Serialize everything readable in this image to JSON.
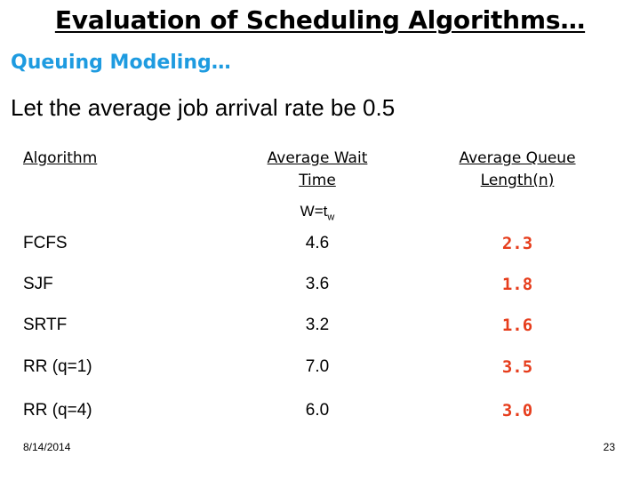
{
  "slide": {
    "title": "Evaluation of Scheduling Algorithms…",
    "subtitle": "Queuing Modeling…",
    "intro": "Let the average job arrival rate be 0.5"
  },
  "table": {
    "headers": {
      "algorithm": "Algorithm",
      "wait_line1": "Average Wait",
      "wait_line2": "Time",
      "queue_line1": "Average Queue",
      "queue_line2": "Length(n)"
    },
    "formula": {
      "base": "W=t",
      "subscript": "w"
    },
    "rows": [
      {
        "algorithm": "FCFS",
        "wait": "4.6",
        "queue": "2.3"
      },
      {
        "algorithm": "SJF",
        "wait": "3.6",
        "queue": "1.8"
      },
      {
        "algorithm": "SRTF",
        "wait": "3.2",
        "queue": "1.6"
      },
      {
        "algorithm": "RR (q=1)",
        "wait": "7.0",
        "queue": "3.5"
      },
      {
        "algorithm": "RR (q=4)",
        "wait": "6.0",
        "queue": "3.0"
      }
    ]
  },
  "footer": {
    "date": "8/14/2014",
    "page": "23"
  },
  "colors": {
    "subtitle": "#1e9be0",
    "queue_values": "#e63d1c"
  }
}
